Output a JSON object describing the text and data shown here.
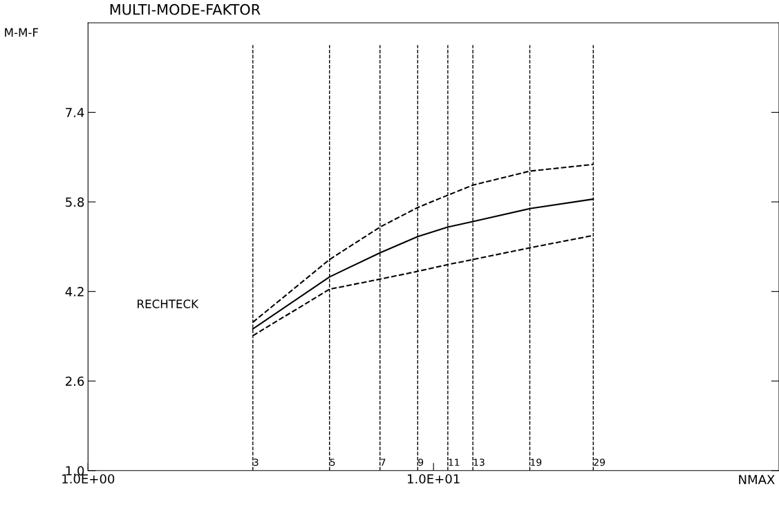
{
  "chart_data": {
    "type": "line",
    "title": "MULTI-MODE-FAKTOR",
    "ylabel": "M-M-F",
    "xlabel": "NMAX",
    "log": "x",
    "xlim": [
      1,
      100
    ],
    "ylim": [
      1,
      9
    ],
    "xticks": [
      {
        "value": 1,
        "label": "1.0E+00"
      },
      {
        "value": 10,
        "label": "1.0E+01"
      }
    ],
    "yticks": [
      {
        "value": 1,
        "label": "1.0"
      },
      {
        "value": 2.6,
        "label": "2.6"
      },
      {
        "value": 4.2,
        "label": "4.2"
      },
      {
        "value": 5.8,
        "label": "5.8"
      },
      {
        "value": 7.4,
        "label": "7.4"
      }
    ],
    "x": [
      3,
      5,
      7,
      9,
      11,
      13,
      19,
      29
    ],
    "series": [
      {
        "color": "#000000",
        "line_style": "dashed",
        "values": [
          3.65,
          4.77,
          5.35,
          5.7,
          5.92,
          6.1,
          6.35,
          6.47
        ]
      },
      {
        "color": "#000000",
        "line_style": "solid",
        "values": [
          3.53,
          4.46,
          4.89,
          5.18,
          5.35,
          5.45,
          5.68,
          5.85
        ]
      },
      {
        "color": "#000000",
        "line_style": "dashed",
        "values": [
          3.41,
          4.24,
          4.42,
          4.56,
          4.68,
          4.77,
          4.98,
          5.2
        ]
      }
    ],
    "ref_lines": [
      {
        "axis": "x",
        "value": 3,
        "label": "3",
        "line_style": "dashed",
        "color": "#000000"
      },
      {
        "axis": "x",
        "value": 5,
        "label": "5",
        "line_style": "dashed",
        "color": "#000000"
      },
      {
        "axis": "x",
        "value": 7,
        "label": "7",
        "line_style": "dashed",
        "color": "#000000"
      },
      {
        "axis": "x",
        "value": 9,
        "label": "9",
        "line_style": "dashed",
        "color": "#000000"
      },
      {
        "axis": "x",
        "value": 11,
        "label": "11",
        "line_style": "dashed",
        "color": "#000000"
      },
      {
        "axis": "x",
        "value": 13,
        "label": "13",
        "line_style": "dashed",
        "color": "#000000"
      },
      {
        "axis": "x",
        "value": 19,
        "label": "19",
        "line_style": "dashed",
        "color": "#000000"
      },
      {
        "axis": "x",
        "value": 29,
        "label": "29",
        "line_style": "dashed",
        "color": "#000000"
      }
    ],
    "annotations": [
      "RECHTECK"
    ],
    "grid": false,
    "legend": false
  }
}
